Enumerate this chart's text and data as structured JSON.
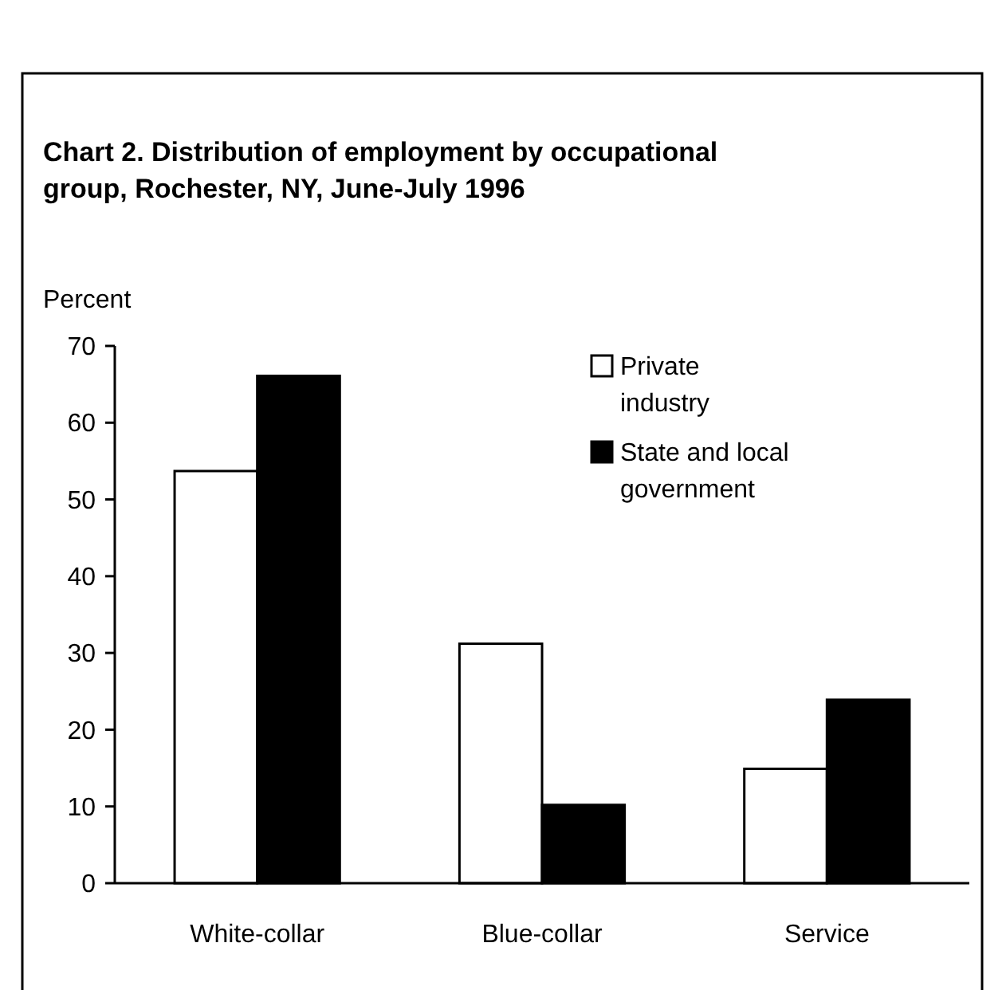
{
  "chart_data": {
    "type": "bar",
    "title": "Chart 2. Distribution of employment by occupational group, Rochester, NY, June-July 1996",
    "ylabel": "Percent",
    "categories": [
      "White-collar",
      "Blue-collar",
      "Service"
    ],
    "series": [
      {
        "name": "Private industry",
        "color": "#ffffff",
        "values": [
          53.7,
          31.2,
          14.9
        ]
      },
      {
        "name": "State and local government",
        "color": "#000000",
        "values": [
          66.1,
          10.2,
          23.9
        ]
      }
    ],
    "ylim": [
      0,
      70
    ],
    "yticks": [
      0,
      10,
      20,
      30,
      40,
      50,
      60,
      70
    ],
    "grid": false,
    "legend": "top right"
  }
}
